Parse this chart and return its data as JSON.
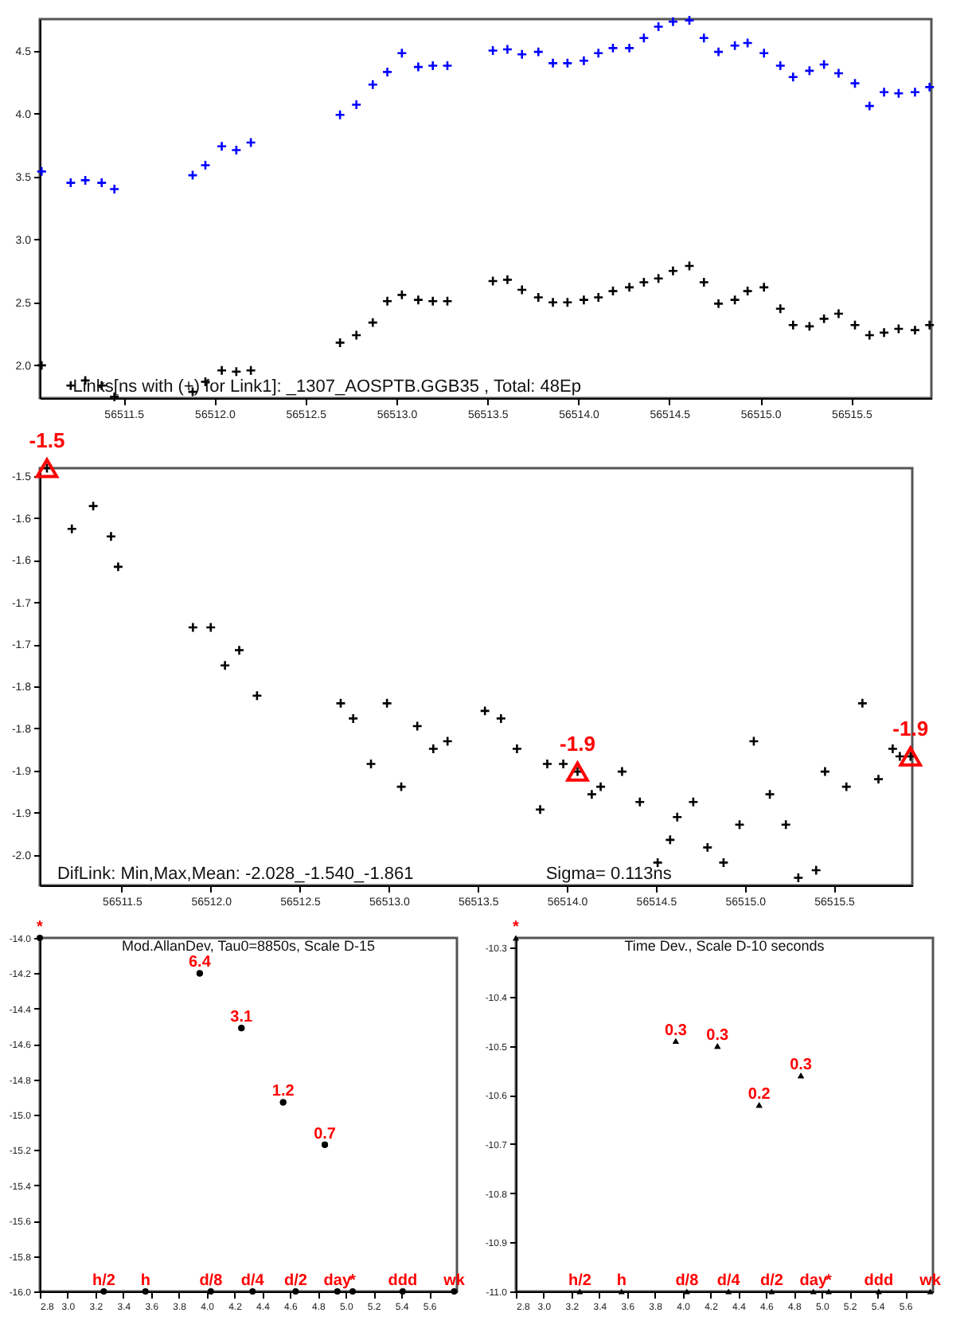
{
  "chart_data": [
    {
      "type": "scatter",
      "marker": "cross",
      "xlim": [
        56511.04,
        56515.94
      ],
      "ylim": [
        1.74,
        4.75
      ],
      "xticks": [
        56511.5,
        {
          "value": 56512,
          "label": "56512.0"
        },
        56512.5,
        {
          "value": 56513,
          "label": "56513.0"
        },
        56513.5,
        {
          "value": 56514,
          "label": "56514.0"
        },
        56514.5,
        {
          "value": 56515,
          "label": "56515.0"
        },
        56515.5
      ],
      "yticks": [
        {
          "value": 2,
          "label": "2.0"
        },
        2.5,
        {
          "value": 3,
          "label": "3.0"
        },
        3.5,
        {
          "value": 4,
          "label": "4.0"
        },
        4.5
      ],
      "x": [
        56511.05,
        56511.21,
        56511.29,
        56511.38,
        56511.45,
        56511.88,
        56511.95,
        56512.04,
        56512.12,
        56512.2,
        56512.69,
        56512.78,
        56512.87,
        56512.95,
        56513.03,
        56513.12,
        56513.2,
        56513.28,
        56513.53,
        56513.61,
        56513.69,
        56513.78,
        56513.86,
        56513.94,
        56514.03,
        56514.11,
        56514.19,
        56514.28,
        56514.36,
        56514.44,
        56514.52,
        56514.61,
        56514.69,
        56514.77,
        56514.86,
        56514.93,
        56515.02,
        56515.11,
        56515.18,
        56515.27,
        56515.35,
        56515.43,
        56515.52,
        56515.6,
        56515.68,
        56515.76,
        56515.85,
        56515.93
      ],
      "series": [
        {
          "color": "#0000ff",
          "values": [
            3.54,
            3.45,
            3.47,
            3.45,
            3.4,
            3.51,
            3.59,
            3.74,
            3.71,
            3.77,
            3.99,
            4.07,
            4.23,
            4.33,
            4.48,
            4.37,
            4.38,
            4.38,
            4.5,
            4.51,
            4.47,
            4.49,
            4.4,
            4.4,
            4.42,
            4.48,
            4.52,
            4.52,
            4.6,
            4.69,
            4.73,
            4.74,
            4.6,
            4.49,
            4.54,
            4.56,
            4.48,
            4.38,
            4.29,
            4.34,
            4.39,
            4.32,
            4.24,
            4.06,
            4.17,
            4.16,
            4.17,
            4.21
          ]
        },
        {
          "color": "#000000",
          "values": [
            2.0,
            1.84,
            1.88,
            1.84,
            1.75,
            1.79,
            1.87,
            1.96,
            1.95,
            1.96,
            2.18,
            2.24,
            2.34,
            2.51,
            2.56,
            2.52,
            2.51,
            2.51,
            2.67,
            2.68,
            2.6,
            2.54,
            2.5,
            2.5,
            2.52,
            2.54,
            2.59,
            2.62,
            2.66,
            2.69,
            2.75,
            2.79,
            2.66,
            2.49,
            2.52,
            2.59,
            2.62,
            2.45,
            2.32,
            2.31,
            2.37,
            2.41,
            2.32,
            2.24,
            2.26,
            2.29,
            2.28,
            2.32
          ]
        }
      ],
      "annotations": [
        "Links[ns with (+) for Link1]: _1307_AOSPTB.GGB35 , Total: 48Ep"
      ]
    },
    {
      "type": "scatter",
      "marker": "cross",
      "xlim": [
        56511.04,
        56515.94
      ],
      "ylim": [
        -2.04,
        -1.49
      ],
      "xticks": [
        56511.5,
        {
          "value": 56512,
          "label": "56512.0"
        },
        56512.5,
        {
          "value": 56513,
          "label": "56513.0"
        },
        56513.5,
        {
          "value": 56514,
          "label": "56514.0"
        },
        56514.5,
        {
          "value": 56515,
          "label": "56515.0"
        },
        56515.5
      ],
      "yticks": [
        -1.5,
        {
          "value": -1.556,
          "label": "-1.6"
        },
        {
          "value": -1.611,
          "label": "-1.6"
        },
        {
          "value": -1.667,
          "label": "-1.7"
        },
        {
          "value": -1.722,
          "label": "-1.7"
        },
        {
          "value": -1.778,
          "label": "-1.8"
        },
        {
          "value": -1.833,
          "label": "-1.8"
        },
        {
          "value": -1.889,
          "label": "-1.9"
        },
        {
          "value": -1.944,
          "label": "-1.9"
        },
        {
          "value": -2,
          "label": "-2.0"
        }
      ],
      "x": [
        56511.08,
        56511.22,
        56511.34,
        56511.44,
        56511.48,
        56511.9,
        56512.0,
        56512.08,
        56512.16,
        56512.26,
        56512.73,
        56512.8,
        56512.9,
        56512.99,
        56513.07,
        56513.16,
        56513.25,
        56513.33,
        56513.54,
        56513.63,
        56513.72,
        56513.85,
        56513.89,
        56513.98,
        56514.06,
        56514.14,
        56514.19,
        56514.31,
        56514.41,
        56514.51,
        56514.58,
        56514.62,
        56514.71,
        56514.79,
        56514.88,
        56514.97,
        56515.05,
        56515.14,
        56515.23,
        56515.3,
        56515.4,
        56515.45,
        56515.57,
        56515.66,
        56515.75,
        56515.83,
        56515.87,
        56515.93
      ],
      "series": [
        {
          "color": "#000000",
          "values": [
            -1.49,
            -1.57,
            -1.54,
            -1.58,
            -1.62,
            -1.7,
            -1.7,
            -1.75,
            -1.73,
            -1.79,
            -1.8,
            -1.82,
            -1.88,
            -1.8,
            -1.91,
            -1.83,
            -1.86,
            -1.85,
            -1.81,
            -1.82,
            -1.86,
            -1.94,
            -1.88,
            -1.88,
            -1.89,
            -1.92,
            -1.91,
            -1.89,
            -1.93,
            -2.01,
            -1.98,
            -1.95,
            -1.93,
            -1.99,
            -2.01,
            -1.96,
            -1.85,
            -1.92,
            -1.96,
            -2.03,
            -2.02,
            -1.89,
            -1.91,
            -1.8,
            -1.9,
            -1.86,
            -1.87,
            -1.87
          ]
        }
      ],
      "annotations": [
        {
          "text": "-1.5",
          "x": 56511.08,
          "y": -1.49
        },
        {
          "text": "-1.9",
          "x": 56514.06,
          "y": -1.89
        },
        {
          "text": "-1.9",
          "x": 56515.93,
          "y": -1.87
        },
        "DifLink: Min,Max,Mean: -2.028_-1.540_-1.861",
        "Sigma= 0.113ns"
      ]
    },
    {
      "type": "scatter",
      "marker": "circle",
      "xlim": [
        2.8,
        5.8
      ],
      "ylim": [
        -16,
        -14
      ],
      "xticks": [
        2.8,
        {
          "value": 3,
          "label": "3.0"
        },
        3.2,
        3.4,
        3.6,
        3.8,
        {
          "value": 4,
          "label": "4.0"
        },
        4.2,
        4.4,
        4.6,
        4.8,
        {
          "value": 5,
          "label": "5.0"
        },
        5.2,
        5.4,
        5.6
      ],
      "yticks": [
        {
          "value": -14,
          "label": "-14.0"
        },
        -14.2,
        -14.4,
        -14.6,
        -14.8,
        {
          "value": -15,
          "label": "-15.0"
        },
        -15.2,
        -15.4,
        -15.6,
        -15.8,
        {
          "value": -16,
          "label": "-16.0"
        }
      ],
      "x": [
        3.95,
        4.25,
        4.55,
        4.85
      ],
      "series": [
        {
          "color": "#000000",
          "values": [
            -14.2,
            -14.51,
            -14.93,
            -15.17
          ]
        }
      ],
      "annotations": [
        "Mod.AllanDev, Tau0=8850s, Scale D-15",
        {
          "text": "6.4",
          "x": 3.95,
          "y": -14.2
        },
        {
          "text": "3.1",
          "x": 4.25,
          "y": -14.51
        },
        {
          "text": "1.2",
          "x": 4.55,
          "y": -14.93
        },
        {
          "text": "0.7",
          "x": 4.85,
          "y": -15.17
        },
        {
          "text": "*",
          "x": 2.8,
          "y": -14
        },
        {
          "text": "h/2",
          "x": 3.26,
          "y": -16
        },
        {
          "text": "h",
          "x": 3.56,
          "y": -16
        },
        {
          "text": "d/8",
          "x": 4.03,
          "y": -16
        },
        {
          "text": "d/4",
          "x": 4.33,
          "y": -16
        },
        {
          "text": "d/2",
          "x": 4.64,
          "y": -16
        },
        {
          "text": "day",
          "x": 4.94,
          "y": -16
        },
        {
          "text": "*",
          "x": 5.05,
          "y": -16
        },
        {
          "text": "ddd",
          "x": 5.41,
          "y": -16
        },
        {
          "text": "wk",
          "x": 5.78,
          "y": -16
        }
      ]
    },
    {
      "type": "scatter",
      "marker": "triangle",
      "xlim": [
        2.8,
        5.8
      ],
      "ylim": [
        -11,
        -10.28
      ],
      "xticks": [
        2.8,
        {
          "value": 3,
          "label": "3.0"
        },
        3.2,
        3.4,
        3.6,
        3.8,
        {
          "value": 4,
          "label": "4.0"
        },
        4.2,
        4.4,
        4.6,
        4.8,
        {
          "value": 5,
          "label": "5.0"
        },
        5.2,
        5.4,
        5.6
      ],
      "yticks": [
        -10.3,
        -10.4,
        -10.5,
        -10.6,
        -10.7,
        -10.8,
        -10.9,
        {
          "value": -11,
          "label": "-11.0"
        }
      ],
      "x": [
        3.95,
        4.25,
        4.55,
        4.85
      ],
      "series": [
        {
          "color": "#000000",
          "values": [
            -10.49,
            -10.5,
            -10.62,
            -10.56
          ]
        }
      ],
      "annotations": [
        "Time Dev., Scale D-10 seconds",
        {
          "text": "0.3",
          "x": 3.95,
          "y": -10.49
        },
        {
          "text": "0.3",
          "x": 4.25,
          "y": -10.5
        },
        {
          "text": "0.2",
          "x": 4.55,
          "y": -10.62
        },
        {
          "text": "0.3",
          "x": 4.85,
          "y": -10.56
        },
        {
          "text": "*",
          "x": 2.8,
          "y": -10.28
        },
        {
          "text": "h/2",
          "x": 3.26,
          "y": -11
        },
        {
          "text": "h",
          "x": 3.56,
          "y": -11
        },
        {
          "text": "d/8",
          "x": 4.03,
          "y": -11
        },
        {
          "text": "d/4",
          "x": 4.33,
          "y": -11
        },
        {
          "text": "d/2",
          "x": 4.64,
          "y": -11
        },
        {
          "text": "day",
          "x": 4.94,
          "y": -11
        },
        {
          "text": "*",
          "x": 5.05,
          "y": -11
        },
        {
          "text": "ddd",
          "x": 5.41,
          "y": -11
        },
        {
          "text": "wk",
          "x": 5.78,
          "y": -11
        }
      ]
    }
  ]
}
